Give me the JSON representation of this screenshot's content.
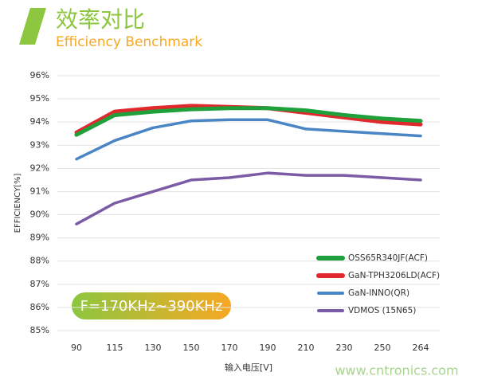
{
  "chart_data": {
    "type": "line",
    "title": "效率对比",
    "subtitle": "Efficiency Benchmark",
    "x_label": "输入电压[V]",
    "y_label": "EFFICIENCY[%]",
    "annotation": "F=170KHz~390KHz",
    "watermark": "www.cntronics.com",
    "categories": [
      "90",
      "115",
      "130",
      "150",
      "170",
      "190",
      "210",
      "230",
      "250",
      "264"
    ],
    "series": [
      {
        "name": "OSS65R340JF(ACF)",
        "color": "#1fa03a",
        "values": [
          93.45,
          94.3,
          94.45,
          94.55,
          94.6,
          94.6,
          94.5,
          94.3,
          94.15,
          94.05
        ]
      },
      {
        "name": "GaN-TPH3206LD(ACF)",
        "color": "#e0282d",
        "values": [
          93.55,
          94.45,
          94.6,
          94.7,
          94.65,
          94.6,
          94.4,
          94.2,
          94.0,
          93.9
        ]
      },
      {
        "name": "GaN-INNO(QR)",
        "color": "#4a86c5",
        "values": [
          92.4,
          93.2,
          93.75,
          94.05,
          94.1,
          94.1,
          93.7,
          93.6,
          93.5,
          93.4
        ]
      },
      {
        "name": "VDMOS (15N65)",
        "color": "#7c5ba6",
        "values": [
          89.6,
          90.5,
          91.0,
          91.5,
          91.6,
          91.8,
          91.7,
          91.7,
          91.6,
          91.5
        ]
      }
    ],
    "ylim": [
      85,
      96
    ],
    "yticks": [
      {
        "value": 85,
        "label": "85%"
      },
      {
        "value": 86,
        "label": "86%"
      },
      {
        "value": 87,
        "label": "87%"
      },
      {
        "value": 88,
        "label": "88%"
      },
      {
        "value": 89,
        "label": "89%"
      },
      {
        "value": 90,
        "label": "90%"
      },
      {
        "value": 91,
        "label": "91%"
      },
      {
        "value": 92,
        "label": "92%"
      },
      {
        "value": 93,
        "label": "93%"
      },
      {
        "value": 94,
        "label": "94%"
      },
      {
        "value": 95,
        "label": "95%"
      },
      {
        "value": 96,
        "label": "96%"
      }
    ],
    "grid": true
  }
}
